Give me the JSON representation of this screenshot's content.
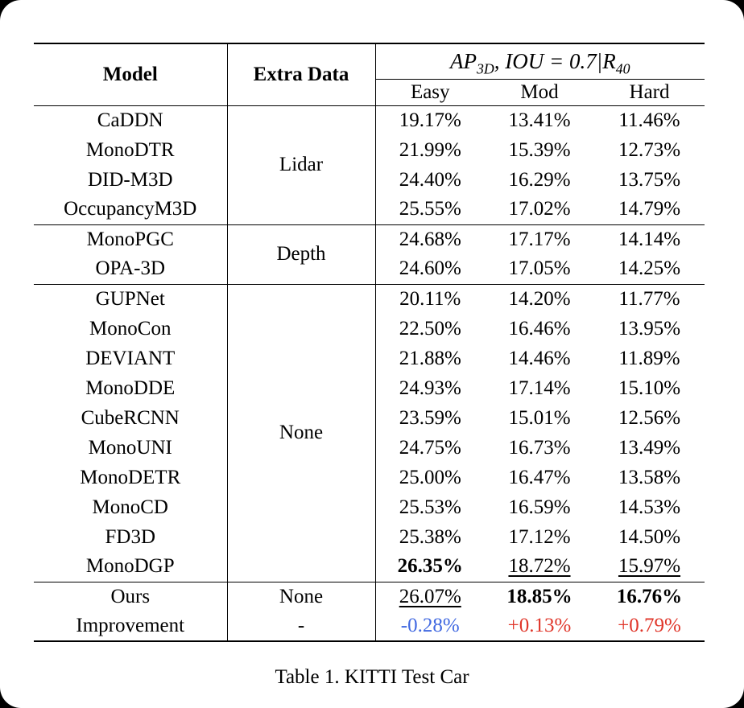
{
  "page": {
    "background_color": "#000000",
    "paper_color": "#ffffff",
    "text_color": "#000000"
  },
  "colors": {
    "improvement_negative": "#4169e1",
    "improvement_positive": "#e0362a",
    "rule_color": "#000000"
  },
  "caption": "Table 1. KITTI Test Car",
  "table": {
    "header": {
      "model": "Model",
      "extra_data": "Extra Data",
      "metric": {
        "ap": "AP",
        "ap_sub": "3D",
        "mid": ", IOU = 0.7|",
        "r": "R",
        "r_sub": "40"
      },
      "subcolumns": [
        "Easy",
        "Mod",
        "Hard"
      ]
    },
    "rows": [
      {
        "model": "CaDDN",
        "extra": "Lidar",
        "values": [
          "19.17%",
          "13.41%",
          "11.46%"
        ]
      },
      {
        "model": "MonoDTR",
        "values": [
          "21.99%",
          "15.39%",
          "12.73%"
        ]
      },
      {
        "model": "DID-M3D",
        "values": [
          "24.40%",
          "16.29%",
          "13.75%"
        ]
      },
      {
        "model": "OccupancyM3D",
        "values": [
          "25.55%",
          "17.02%",
          "14.79%"
        ]
      },
      {
        "model": "MonoPGC",
        "extra": "Depth",
        "values": [
          "24.68%",
          "17.17%",
          "14.14%"
        ]
      },
      {
        "model": "OPA-3D",
        "values": [
          "24.60%",
          "17.05%",
          "14.25%"
        ]
      },
      {
        "model": "GUPNet",
        "extra": "None",
        "values": [
          "20.11%",
          "14.20%",
          "11.77%"
        ]
      },
      {
        "model": "MonoCon",
        "values": [
          "22.50%",
          "16.46%",
          "13.95%"
        ]
      },
      {
        "model": "DEVIANT",
        "values": [
          "21.88%",
          "14.46%",
          "11.89%"
        ]
      },
      {
        "model": "MonoDDE",
        "values": [
          "24.93%",
          "17.14%",
          "15.10%"
        ]
      },
      {
        "model": "CubeRCNN",
        "values": [
          "23.59%",
          "15.01%",
          "12.56%"
        ]
      },
      {
        "model": "MonoUNI",
        "values": [
          "24.75%",
          "16.73%",
          "13.49%"
        ]
      },
      {
        "model": "MonoDETR",
        "values": [
          "25.00%",
          "16.47%",
          "13.58%"
        ]
      },
      {
        "model": "MonoCD",
        "values": [
          "25.53%",
          "16.59%",
          "14.53%"
        ]
      },
      {
        "model": "FD3D",
        "values": [
          "25.38%",
          "17.12%",
          "14.50%"
        ]
      },
      {
        "model": "MonoDGP",
        "values": [
          "26.35%",
          "18.72%",
          "15.97%"
        ]
      },
      {
        "model": "Ours",
        "extra": "None",
        "values": [
          "26.07%",
          "18.85%",
          "16.76%"
        ]
      },
      {
        "model": "Improvement",
        "extra": "-",
        "values": [
          "-0.28%",
          "+0.13%",
          "+0.79%"
        ]
      }
    ]
  }
}
